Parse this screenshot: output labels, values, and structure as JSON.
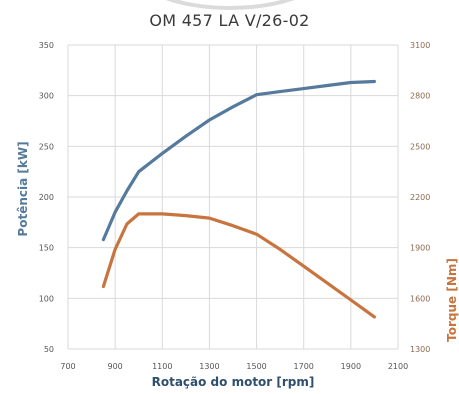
{
  "chart_data": {
    "type": "line",
    "title": "OM 457 LA V/26-02",
    "xlabel": "Rotação do motor [rpm]",
    "ylabel_left": "Potência [kW]",
    "ylabel_right": "Torque [Nm]",
    "xlim": [
      700,
      2100
    ],
    "ylim_left": [
      50,
      350
    ],
    "ylim_right": [
      1300,
      3100
    ],
    "x_ticks": [
      700,
      900,
      1100,
      1300,
      1500,
      1700,
      1900,
      2100
    ],
    "y_ticks_left": [
      50,
      100,
      150,
      200,
      250,
      300,
      350
    ],
    "y_ticks_right": [
      1300,
      1600,
      1900,
      2200,
      2500,
      2800,
      3100
    ],
    "grid": true,
    "series": [
      {
        "name": "Potência [kW]",
        "axis": "left",
        "color": "#557a9c",
        "x": [
          850,
          900,
          950,
          1000,
          1100,
          1200,
          1300,
          1400,
          1500,
          1600,
          1700,
          1800,
          1900,
          2000
        ],
        "y": [
          158,
          185,
          206,
          225,
          243,
          260,
          276,
          289,
          301,
          304,
          307,
          310,
          313,
          314
        ]
      },
      {
        "name": "Torque [Nm]",
        "axis": "right",
        "color": "#c8743f",
        "x": [
          850,
          900,
          950,
          1000,
          1100,
          1200,
          1300,
          1400,
          1500,
          1600,
          1700,
          1800,
          1900,
          2000
        ],
        "y": [
          1670,
          1890,
          2040,
          2100,
          2100,
          2090,
          2075,
          2030,
          1980,
          1890,
          1790,
          1690,
          1590,
          1490
        ]
      }
    ]
  },
  "colors": {
    "left_axis": "#557a9c",
    "right_axis": "#c8743f",
    "grid": "#d9d9d9"
  }
}
